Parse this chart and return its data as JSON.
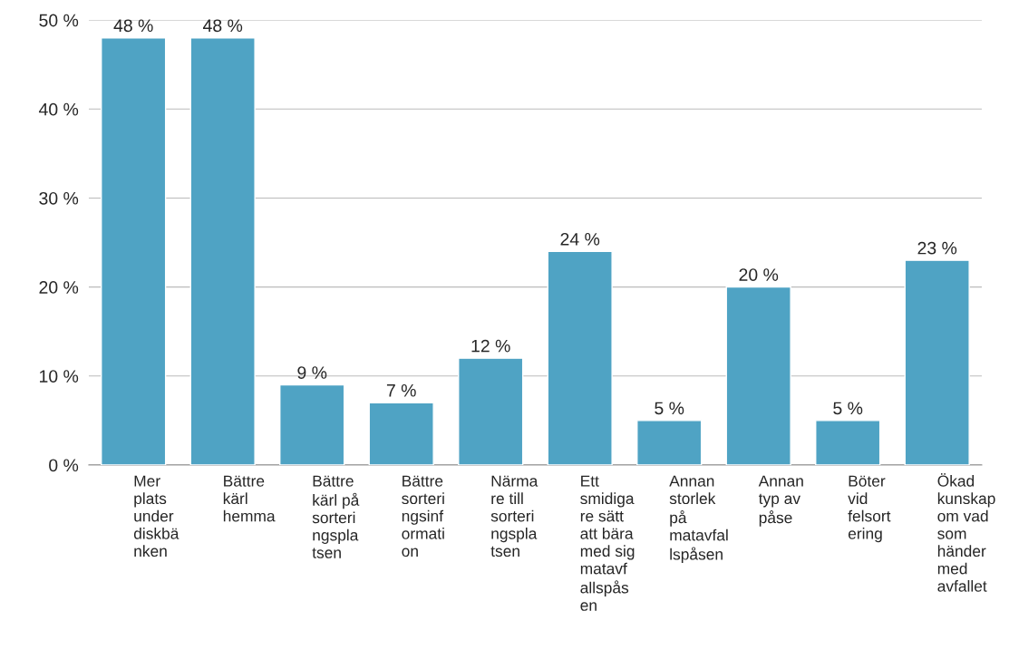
{
  "chart_data": {
    "type": "bar",
    "categories": [
      "Mer\nplats\nunder\ndiskbä\nnken",
      "Bättre\nkärl\nhemma",
      "Bättre\nkärl på\nsorteri\nngspla\ntsen",
      "Bättre\nsorteri\nngsinf\normati\non",
      "Närma\nre till\nsorteri\nngspla\ntsen",
      "Ett\nsmidiga\nre sätt\natt bära\nmed sig\nmatavf\nallspås\nen",
      "Annan\nstorlek\npå\nmatavfal\nlspåsen",
      "Annan\ntyp av\npåse",
      "Böter\nvid\nfelsort\nering",
      "Ökad\nkunskap\nom vad\nsom\nhänder\nmed\navfallet"
    ],
    "values": [
      48,
      48,
      9,
      7,
      12,
      24,
      5,
      20,
      5,
      23
    ],
    "color": "#4fa3c4",
    "ylim": [
      0,
      50
    ],
    "yticks": [
      {
        "value": 0,
        "label": "0 %"
      },
      {
        "value": 10,
        "label": "10 %"
      },
      {
        "value": 20,
        "label": "20 %"
      },
      {
        "value": 30,
        "label": "30 %"
      },
      {
        "value": 40,
        "label": "40 %"
      },
      {
        "value": 50,
        "label": "50 %"
      }
    ],
    "value_labels": [
      "48 %",
      "48 %",
      "9 %",
      "7 %",
      "12 %",
      "24 %",
      "5 %",
      "20 %",
      "5 %",
      "23 %"
    ],
    "grid": "y",
    "legend": false
  }
}
